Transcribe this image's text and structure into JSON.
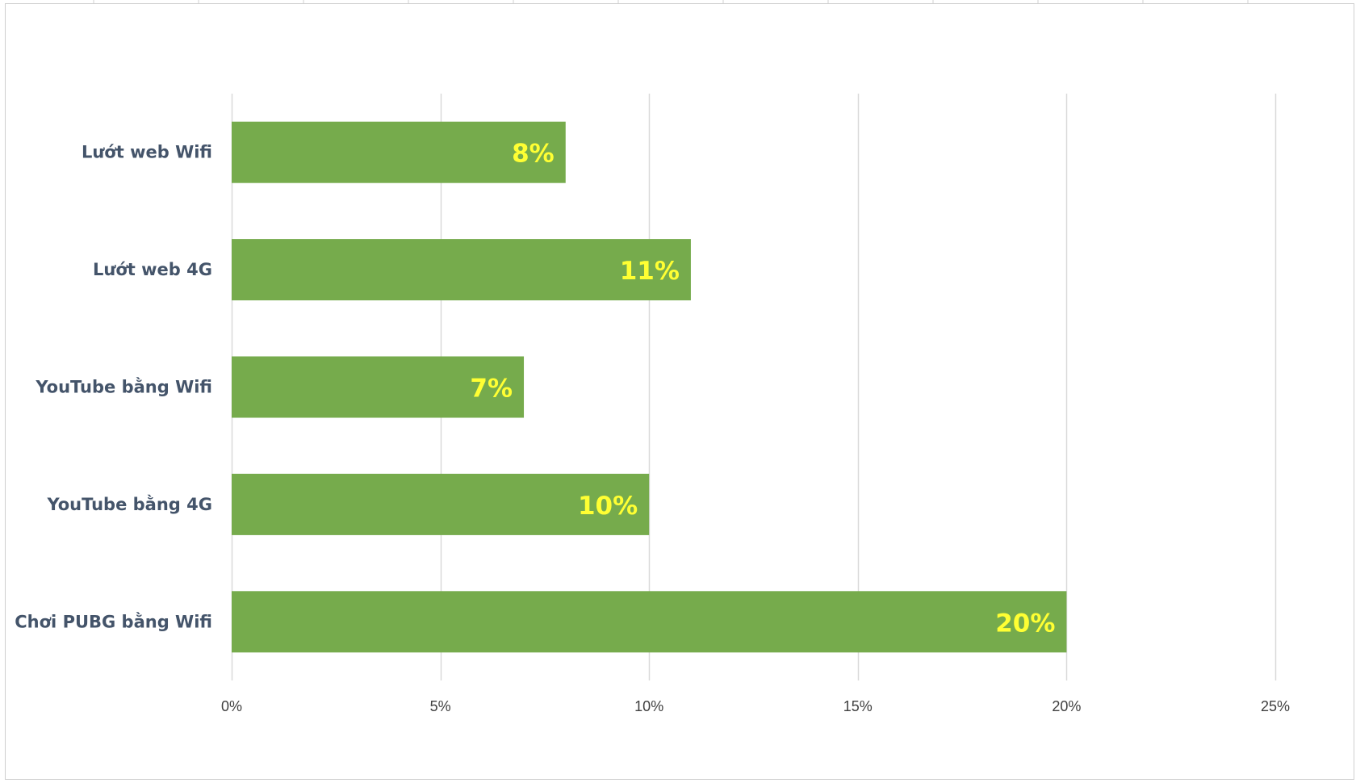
{
  "chart_data": {
    "type": "bar",
    "orientation": "horizontal",
    "title": "",
    "xlabel": "",
    "ylabel": "",
    "categories": [
      "Lướt web Wifi",
      "Lướt web 4G",
      "YouTube bằng Wifi",
      "YouTube bằng 4G",
      "Chơi PUBG bằng Wifi"
    ],
    "values": [
      8,
      11,
      7,
      10,
      20
    ],
    "data_labels": [
      "8%",
      "11%",
      "7%",
      "10%",
      "20%"
    ],
    "xlim": [
      0,
      25
    ],
    "x_ticks": [
      0,
      5,
      10,
      15,
      20,
      25
    ],
    "x_tick_labels": [
      "0%",
      "5%",
      "10%",
      "15%",
      "20%",
      "25%"
    ],
    "grid": "vertical",
    "legend": "none",
    "colors": {
      "bar": "#76ab4c",
      "data_label": "#ffff33",
      "category_text": "#44546a",
      "tick_text": "#404040",
      "gridline": "#d9d9d9"
    }
  }
}
